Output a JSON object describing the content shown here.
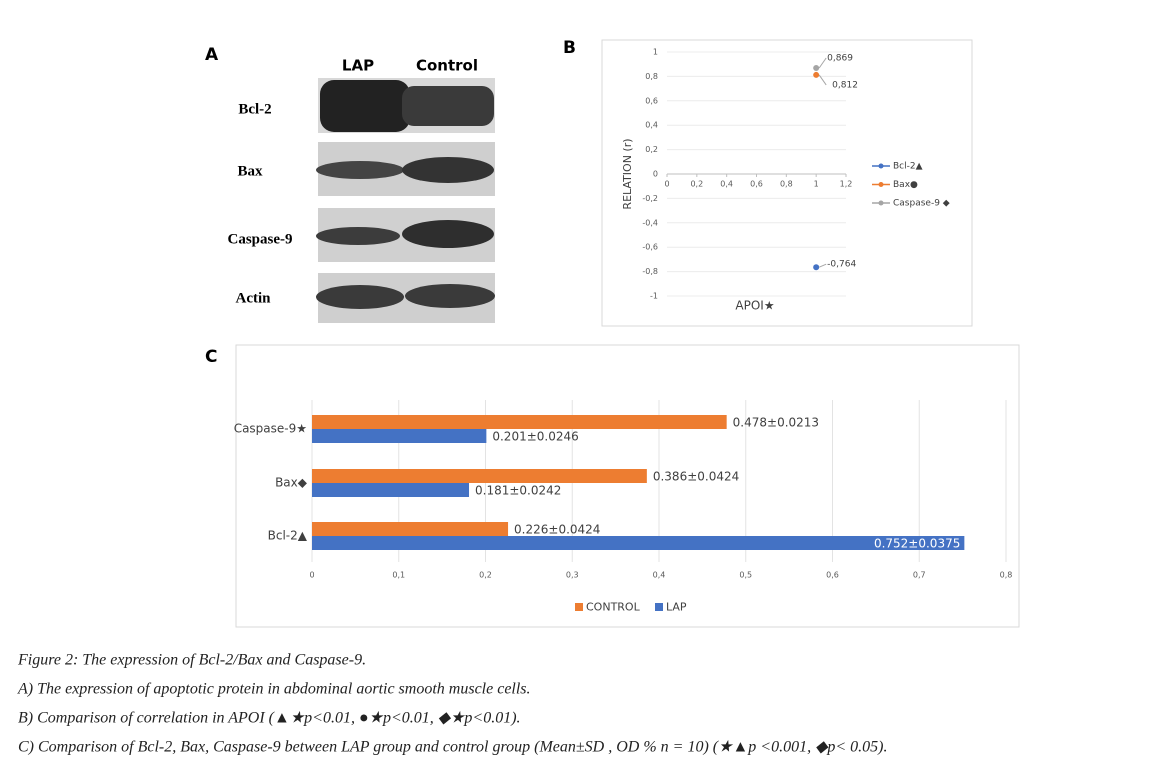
{
  "panel_a": {
    "label": "A",
    "columns": [
      "LAP",
      "Control"
    ],
    "rows": [
      "Bcl-2",
      "Bax",
      "Caspase-9",
      "Actin"
    ]
  },
  "chart_data": [
    {
      "type": "scatter",
      "panel": "B",
      "x_label": "APOI★",
      "y_label": "RELATION (r)",
      "xlim": [
        0,
        1.2
      ],
      "ylim": [
        -1,
        1
      ],
      "xticks": [
        0,
        {
          "value": 0.2,
          "label": "0,2"
        },
        {
          "value": 0.4,
          "label": "0,4"
        },
        {
          "value": 0.6,
          "label": "0,6"
        },
        {
          "value": 0.8,
          "label": "0,8"
        },
        1,
        {
          "value": 1.2,
          "label": "1,2"
        }
      ],
      "yticks": [
        1,
        {
          "value": 0.8,
          "label": "0,8"
        },
        {
          "value": 0.6,
          "label": "0,6"
        },
        {
          "value": 0.4,
          "label": "0,4"
        },
        {
          "value": 0.2,
          "label": "0,2"
        },
        0,
        {
          "value": -0.2,
          "label": "-0,2"
        },
        {
          "value": -0.4,
          "label": "-0,4"
        },
        {
          "value": -0.6,
          "label": "-0,6"
        },
        {
          "value": -0.8,
          "label": "-0,8"
        },
        -1
      ],
      "grid": true,
      "legend": "right",
      "series": [
        {
          "name": "Bcl-2▲",
          "color": "#4472c4",
          "x": [
            1
          ],
          "values": [
            -0.764
          ],
          "value_labels": [
            "-0,764"
          ]
        },
        {
          "name": "Bax●",
          "color": "#ed7d31",
          "x": [
            1
          ],
          "values": [
            0.812
          ],
          "value_labels": [
            "0,812"
          ]
        },
        {
          "name": "Caspase-9 ◆",
          "color": "#a5a5a5",
          "x": [
            1
          ],
          "values": [
            0.869
          ],
          "value_labels": [
            "0,869"
          ]
        }
      ]
    },
    {
      "type": "hbar",
      "panel": "C",
      "categories": [
        "Caspase-9★",
        "Bax◆",
        "Bcl-2▲"
      ],
      "xlim": [
        0,
        0.8
      ],
      "xticks": [
        0,
        {
          "value": 0.1,
          "label": "0,1"
        },
        {
          "value": 0.2,
          "label": "0,2"
        },
        {
          "value": 0.3,
          "label": "0,3"
        },
        {
          "value": 0.4,
          "label": "0,4"
        },
        {
          "value": 0.5,
          "label": "0,5"
        },
        {
          "value": 0.6,
          "label": "0,6"
        },
        {
          "value": 0.7,
          "label": "0,7"
        },
        {
          "value": 0.8,
          "label": "0,8"
        }
      ],
      "grid": true,
      "legend": "bottom",
      "series": [
        {
          "name": "CONTROL",
          "color": "#ed7d31",
          "values": [
            0.478,
            0.386,
            0.226
          ],
          "value_labels": [
            "0.478±0.0213",
            "0.386±0.0424",
            "0.226±0.0424"
          ]
        },
        {
          "name": "LAP",
          "color": "#4472c4",
          "values": [
            0.201,
            0.181,
            0.752
          ],
          "value_labels": [
            "0.201±0.0246",
            "0.181±0.0242",
            "0.752±0.0375"
          ]
        }
      ]
    }
  ],
  "caption": {
    "title": "Figure 2: The expression of Bcl-2/Bax and Caspase-9.",
    "lines": [
      "A) The expression of apoptotic protein in abdominal aortic smooth muscle cells.",
      "B) Comparison of correlation in APOI (▲★p<0.01,   ●★p<0.01,   ◆★p<0.01).",
      "C) Comparison of Bcl-2, Bax, Caspase-9 between LAP group and control group (Mean±SD ,   OD % n = 10) (★▲p <0.001, ◆p< 0.05)."
    ]
  }
}
